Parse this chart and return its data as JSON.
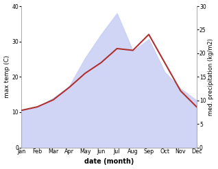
{
  "months": [
    "Jan",
    "Feb",
    "Mar",
    "Apr",
    "May",
    "Jun",
    "Jul",
    "Aug",
    "Sep",
    "Oct",
    "Nov",
    "Dec"
  ],
  "max_temp": [
    10.5,
    11.5,
    13.5,
    17.0,
    21.0,
    24.0,
    28.0,
    27.5,
    32.0,
    24.0,
    16.0,
    11.5
  ],
  "precipitation": [
    8.0,
    8.5,
    10.5,
    13.0,
    19.0,
    24.0,
    28.5,
    20.5,
    23.0,
    16.0,
    12.5,
    10.0
  ],
  "temp_color": "#b03030",
  "precip_fill_color": "#c8cef5",
  "precip_fill_alpha": 0.85,
  "xlabel": "date (month)",
  "ylabel_left": "max temp (C)",
  "ylabel_right": "med. precipitation (kg/m2)",
  "ylim_left": [
    0,
    40
  ],
  "ylim_right": [
    0,
    30
  ],
  "yticks_left": [
    0,
    10,
    20,
    30,
    40
  ],
  "yticks_right": [
    0,
    5,
    10,
    15,
    20,
    25,
    30
  ],
  "bg_color": "#ffffff"
}
